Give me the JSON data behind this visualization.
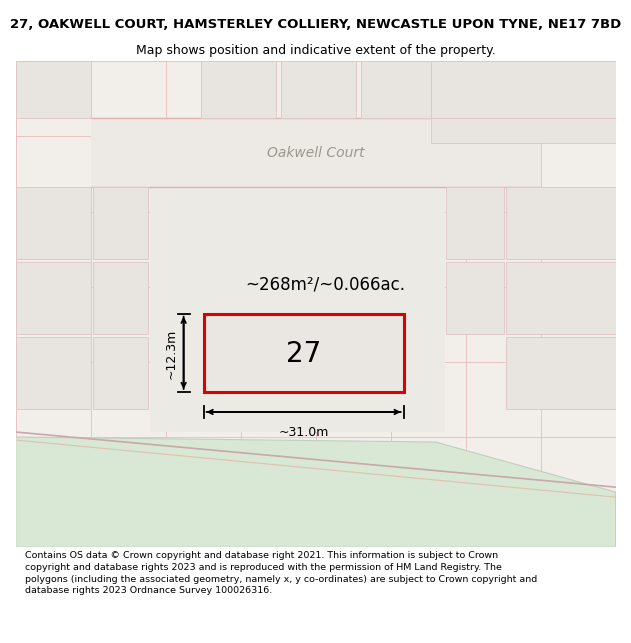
{
  "title_line1": "27, OAKWELL COURT, HAMSTERLEY COLLIERY, NEWCASTLE UPON TYNE, NE17 7BD",
  "title_line2": "Map shows position and indicative extent of the property.",
  "footer_text": "Contains OS data © Crown copyright and database right 2021. This information is subject to Crown copyright and database rights 2023 and is reproduced with the permission of HM Land Registry. The polygons (including the associated geometry, namely x, y co-ordinates) are subject to Crown copyright and database rights 2023 Ordnance Survey 100026316.",
  "map_bg": "#f2efea",
  "grid_line_color": "#e8b8b8",
  "highlight_rect_color": "#dd0000",
  "property_label": "27",
  "area_text": "~268m²/~0.066ac.",
  "dim_width": "~31.0m",
  "dim_height": "~12.3m",
  "road_label": "Oakwell Court",
  "title_fontsize": 9.5,
  "subtitle_fontsize": 9.0,
  "footer_fontsize": 6.8,
  "road_label_fontsize": 10,
  "property_label_fontsize": 20,
  "area_fontsize": 12
}
